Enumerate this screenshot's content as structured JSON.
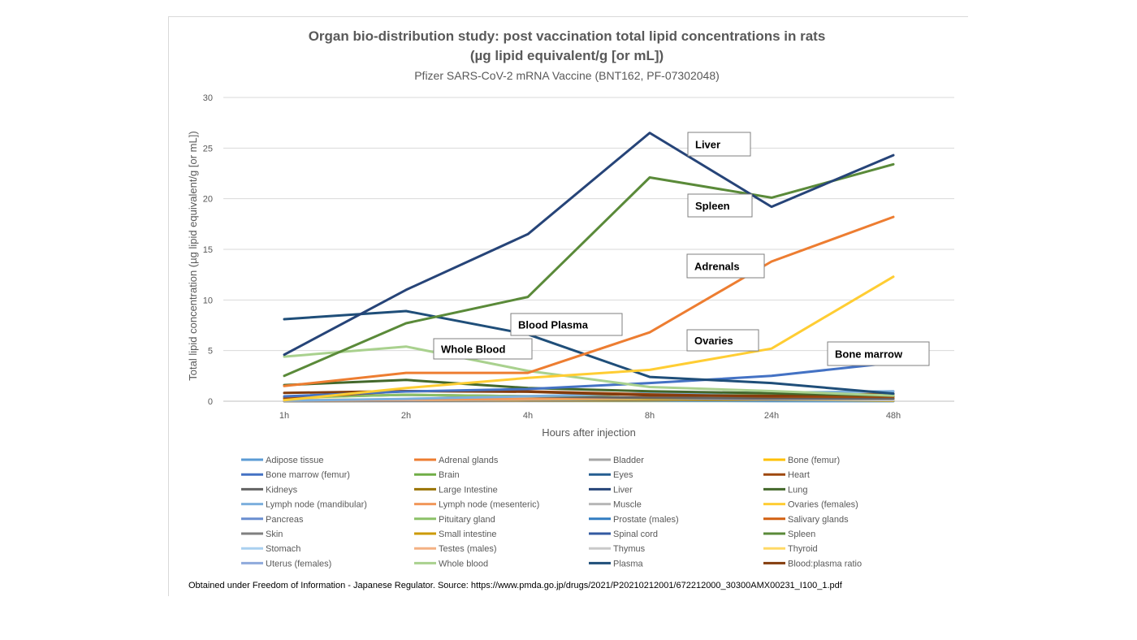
{
  "chart_data": {
    "type": "line",
    "title": "Organ bio-distribution study: post vaccination total lipid concentrations in rats",
    "title_line2": "(µg lipid equivalent/g [or mL])",
    "subtitle": "Pfizer SARS-CoV-2 mRNA Vaccine (BNT162, PF-07302048)",
    "xlabel": "Hours after injection",
    "ylabel": "Total lipid concentration (µg lipid equivalent/g [or mL])",
    "categories": [
      "1h",
      "2h",
      "4h",
      "8h",
      "24h",
      "48h"
    ],
    "ylim": [
      0,
      30
    ],
    "yticks": [
      0,
      5,
      10,
      15,
      20,
      25,
      30
    ],
    "grid": true,
    "legend_position": "bottom",
    "series": [
      {
        "name": "Adipose tissue",
        "color": "#5b9bd5",
        "values": [
          0.06,
          0.11,
          0.07,
          0.04,
          0.02,
          0.01
        ]
      },
      {
        "name": "Adrenal glands",
        "color": "#ed7d31",
        "values": [
          1.5,
          2.8,
          2.8,
          6.8,
          13.8,
          18.2
        ]
      },
      {
        "name": "Bladder",
        "color": "#a5a5a5",
        "values": [
          0.04,
          0.04,
          0.05,
          0.05,
          0.04,
          0.04
        ]
      },
      {
        "name": "Bone (femur)",
        "color": "#ffc000",
        "values": [
          0.09,
          0.13,
          0.18,
          0.26,
          0.28,
          0.34
        ]
      },
      {
        "name": "Bone marrow (femur)",
        "color": "#4472c4",
        "values": [
          0.48,
          0.96,
          1.2,
          1.8,
          2.5,
          3.8
        ]
      },
      {
        "name": "Brain",
        "color": "#70ad47",
        "values": [
          0.05,
          0.05,
          0.04,
          0.03,
          0.03,
          0.04
        ]
      },
      {
        "name": "Eyes",
        "color": "#255e91",
        "values": [
          0.01,
          0.02,
          0.03,
          0.04,
          0.03,
          0.02
        ]
      },
      {
        "name": "Heart",
        "color": "#9e480e",
        "values": [
          0.28,
          1.0,
          0.97,
          0.67,
          0.46,
          0.44
        ]
      },
      {
        "name": "Kidneys",
        "color": "#636363",
        "values": [
          0.39,
          0.63,
          0.49,
          0.34,
          0.27,
          0.25
        ]
      },
      {
        "name": "Large Intestine",
        "color": "#997300",
        "values": [
          0.01,
          0.05,
          0.09,
          0.12,
          0.14,
          0.16
        ]
      },
      {
        "name": "Liver",
        "color": "#264478",
        "values": [
          4.6,
          11.0,
          16.5,
          26.5,
          19.2,
          24.3
        ]
      },
      {
        "name": "Lung",
        "color": "#43682b",
        "values": [
          1.6,
          2.1,
          1.3,
          0.99,
          0.79,
          0.55
        ]
      },
      {
        "name": "Lymph node (mandibular)",
        "color": "#7cafdd",
        "values": [
          0.06,
          0.23,
          0.49,
          0.79,
          0.84,
          0.98
        ]
      },
      {
        "name": "Lymph node (mesenteric)",
        "color": "#f1975a",
        "values": [
          0.05,
          0.15,
          0.23,
          0.38,
          0.42,
          0.58
        ]
      },
      {
        "name": "Muscle",
        "color": "#b7b7b7",
        "values": [
          0.02,
          0.02,
          0.03,
          0.03,
          0.04,
          0.03
        ]
      },
      {
        "name": "Ovaries (females)",
        "color": "#ffcd33",
        "values": [
          0.1,
          1.3,
          2.3,
          3.1,
          5.2,
          12.3
        ]
      },
      {
        "name": "Pancreas",
        "color": "#698ed0",
        "values": [
          0.08,
          0.15,
          0.14,
          0.17,
          0.18,
          0.19
        ]
      },
      {
        "name": "Pituitary gland",
        "color": "#8cc168",
        "values": [
          0.34,
          0.64,
          0.49,
          0.72,
          0.78,
          0.52
        ]
      },
      {
        "name": "Prostate (males)",
        "color": "#327dc2",
        "values": [
          0.06,
          0.09,
          0.08,
          0.1,
          0.1,
          0.09
        ]
      },
      {
        "name": "Salivary glands",
        "color": "#d26012",
        "values": [
          0.07,
          0.15,
          0.22,
          0.2,
          0.22,
          0.25
        ]
      },
      {
        "name": "Skin",
        "color": "#7f7f7f",
        "values": [
          0.01,
          0.04,
          0.08,
          0.16,
          0.23,
          0.25
        ]
      },
      {
        "name": "Small intestine",
        "color": "#cc9a00",
        "values": [
          0.04,
          0.1,
          0.06,
          0.09,
          0.2,
          0.05
        ]
      },
      {
        "name": "Spinal cord",
        "color": "#335aa1",
        "values": [
          0.04,
          0.06,
          0.04,
          0.06,
          0.05,
          0.05
        ]
      },
      {
        "name": "Spleen",
        "color": "#5a8a39",
        "values": [
          2.5,
          7.7,
          10.3,
          22.1,
          20.1,
          23.4
        ]
      },
      {
        "name": "Stomach",
        "color": "#a9d0f0",
        "values": [
          0.02,
          0.04,
          0.04,
          0.09,
          0.07,
          0.06
        ]
      },
      {
        "name": "Testes (males)",
        "color": "#f4b183",
        "values": [
          0.03,
          0.04,
          0.05,
          0.07,
          0.08,
          0.09
        ]
      },
      {
        "name": "Thymus",
        "color": "#c9c9c9",
        "values": [
          0.09,
          0.12,
          0.2,
          0.34,
          0.21,
          0.11
        ]
      },
      {
        "name": "Thyroid",
        "color": "#ffd966",
        "values": [
          0.16,
          0.17,
          0.22,
          0.27,
          0.27,
          0.31
        ]
      },
      {
        "name": "Uterus (females)",
        "color": "#8faadc",
        "values": [
          0.04,
          0.06,
          0.04,
          0.07,
          0.04,
          0.07
        ]
      },
      {
        "name": "Whole blood",
        "color": "#a9d18e",
        "values": [
          4.4,
          5.4,
          3.0,
          1.4,
          1.0,
          0.55
        ]
      },
      {
        "name": "Plasma",
        "color": "#1f4e79",
        "values": [
          8.1,
          8.9,
          6.6,
          2.4,
          1.8,
          0.75
        ]
      },
      {
        "name": "Blood:plasma ratio",
        "color": "#843c0c",
        "values": [
          0.82,
          1.0,
          0.93,
          0.58,
          0.53,
          0.74
        ]
      }
    ],
    "annotations": [
      {
        "text": "Liver"
      },
      {
        "text": "Spleen"
      },
      {
        "text": "Adrenals"
      },
      {
        "text": "Blood Plasma"
      },
      {
        "text": "Ovaries"
      },
      {
        "text": "Whole Blood"
      },
      {
        "text": "Bone marrow"
      }
    ]
  },
  "footnote": "Obtained under Freedom of Information - Japanese Regulator.  Source: https://www.pmda.go.jp/drugs/2021/P20210212001/672212000_30300AMX00231_I100_1.pdf"
}
